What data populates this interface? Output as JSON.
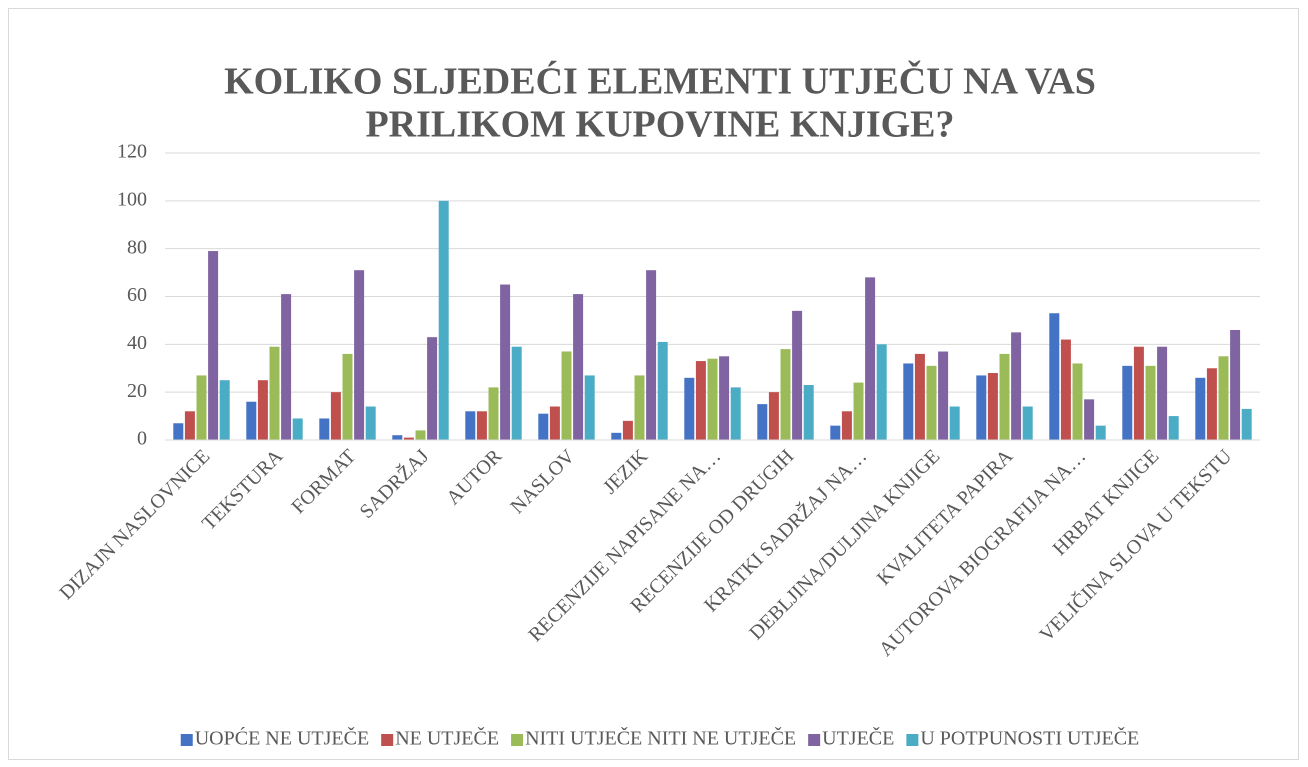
{
  "chart_data": {
    "type": "bar",
    "title": [
      "KOLIKO SLJEDEĆI ELEMENTI UTJEČU NA VAS",
      "PRILIKOM KUPOVINE KNJIGE?"
    ],
    "categories": [
      "DIZAJN NASLOVNICE",
      "TEKSTURA",
      "FORMAT",
      "SADRŽAJ",
      "AUTOR",
      "NASLOV",
      "JEZIK",
      "RECENZIJE NAPISANE NA…",
      "RECENZIJE OD DRUGIH",
      "KRATKI SADRŽAJ NA…",
      "DEBLJINA/DULJINA KNJIGE",
      "KVALITETA PAPIRA",
      "AUTOROVA BIOGRAFIJA NA…",
      "HRBAT KNJIGE",
      "VELIČINA SLOVA U TEKSTU"
    ],
    "series": [
      {
        "name": "UOPĆE NE UTJEČE",
        "color": "#4472c4",
        "values": [
          7,
          16,
          9,
          2,
          12,
          11,
          3,
          26,
          15,
          6,
          32,
          27,
          53,
          31,
          26
        ]
      },
      {
        "name": "NE UTJEČE",
        "color": "#c0504d",
        "values": [
          12,
          25,
          20,
          1,
          12,
          14,
          8,
          33,
          20,
          12,
          36,
          28,
          42,
          39,
          30
        ]
      },
      {
        "name": "NITI UTJEČE NITI NE UTJEČE",
        "color": "#9bbb59",
        "values": [
          27,
          39,
          36,
          4,
          22,
          37,
          27,
          34,
          38,
          24,
          31,
          36,
          32,
          31,
          35
        ]
      },
      {
        "name": "UTJEČE",
        "color": "#8064a2",
        "values": [
          79,
          61,
          71,
          43,
          65,
          61,
          71,
          35,
          54,
          68,
          37,
          45,
          17,
          39,
          46
        ]
      },
      {
        "name": "U POTPUNOSTI UTJEČE",
        "color": "#4bacc6",
        "values": [
          25,
          9,
          14,
          100,
          39,
          27,
          41,
          22,
          23,
          40,
          14,
          14,
          6,
          10,
          13
        ]
      }
    ],
    "ylim": [
      0,
      120
    ],
    "yticks": [
      0,
      20,
      40,
      60,
      80,
      100,
      120
    ],
    "grid": true,
    "legend": "bottom"
  }
}
